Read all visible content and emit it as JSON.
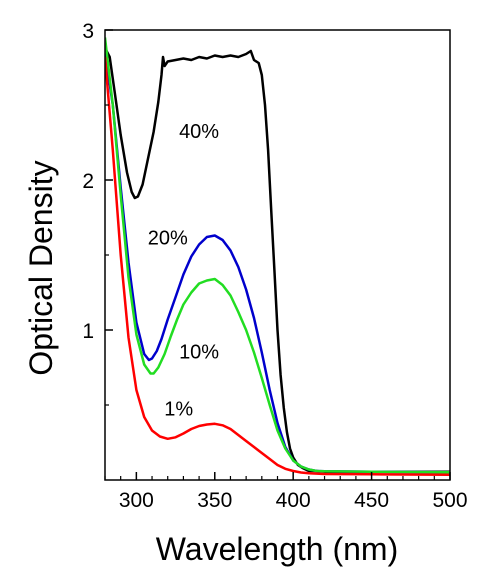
{
  "chart_data": {
    "type": "line",
    "xlabel": "Wavelength (nm)",
    "ylabel": "Optical Density",
    "xlim": [
      280,
      500
    ],
    "ylim": [
      0,
      3
    ],
    "grid": false,
    "x_ticks": [
      300,
      350,
      400,
      450,
      500
    ],
    "y_ticks": [
      1,
      2,
      3
    ],
    "series": [
      {
        "name": "40%",
        "color": "#000000",
        "x": [
          280,
          283,
          286,
          290,
          294,
          297,
          299,
          301,
          304,
          307,
          311,
          314,
          316,
          317,
          318,
          320,
          325,
          330,
          335,
          340,
          345,
          350,
          355,
          360,
          365,
          370,
          373,
          375,
          378,
          380,
          382,
          384,
          386,
          388,
          390,
          392,
          394,
          396,
          398,
          400,
          403,
          406,
          410,
          415,
          420,
          450,
          500
        ],
        "y": [
          2.88,
          2.82,
          2.6,
          2.3,
          2.05,
          1.92,
          1.88,
          1.89,
          1.97,
          2.12,
          2.32,
          2.52,
          2.7,
          2.82,
          2.76,
          2.79,
          2.8,
          2.81,
          2.8,
          2.82,
          2.81,
          2.83,
          2.82,
          2.83,
          2.82,
          2.84,
          2.86,
          2.8,
          2.78,
          2.7,
          2.5,
          2.2,
          1.8,
          1.4,
          1.0,
          0.7,
          0.48,
          0.32,
          0.21,
          0.15,
          0.1,
          0.08,
          0.06,
          0.06,
          0.055,
          0.055,
          0.055
        ]
      },
      {
        "name": "20%",
        "color": "#0000cc",
        "x": [
          280,
          285,
          290,
          295,
          300,
          305,
          308,
          310,
          313,
          316,
          320,
          325,
          330,
          335,
          340,
          345,
          350,
          355,
          360,
          365,
          370,
          375,
          380,
          385,
          390,
          395,
          400,
          405,
          410,
          415,
          420,
          450,
          500
        ],
        "y": [
          2.85,
          2.5,
          1.95,
          1.45,
          1.05,
          0.84,
          0.8,
          0.81,
          0.86,
          0.94,
          1.07,
          1.22,
          1.37,
          1.49,
          1.57,
          1.62,
          1.63,
          1.6,
          1.53,
          1.42,
          1.27,
          1.08,
          0.85,
          0.6,
          0.38,
          0.22,
          0.13,
          0.09,
          0.07,
          0.06,
          0.058,
          0.055,
          0.052
        ]
      },
      {
        "name": "10%",
        "color": "#22dd22",
        "x": [
          280,
          285,
          290,
          295,
          300,
          305,
          309,
          311,
          314,
          318,
          322,
          326,
          330,
          335,
          340,
          345,
          350,
          355,
          360,
          365,
          370,
          375,
          380,
          385,
          390,
          395,
          400,
          405,
          410,
          415,
          420,
          450,
          500
        ],
        "y": [
          2.95,
          2.5,
          1.9,
          1.35,
          0.97,
          0.77,
          0.71,
          0.71,
          0.75,
          0.84,
          0.96,
          1.07,
          1.17,
          1.25,
          1.31,
          1.33,
          1.34,
          1.3,
          1.23,
          1.12,
          1.0,
          0.85,
          0.68,
          0.5,
          0.33,
          0.21,
          0.13,
          0.09,
          0.07,
          0.06,
          0.058,
          0.055,
          0.052
        ]
      },
      {
        "name": "1%",
        "color": "#ff0000",
        "x": [
          280,
          285,
          290,
          295,
          300,
          305,
          310,
          315,
          320,
          325,
          330,
          335,
          340,
          345,
          350,
          355,
          360,
          365,
          370,
          375,
          380,
          385,
          390,
          395,
          400,
          405,
          410,
          420,
          450,
          500
        ],
        "y": [
          2.82,
          2.2,
          1.5,
          0.95,
          0.6,
          0.42,
          0.33,
          0.29,
          0.275,
          0.285,
          0.31,
          0.34,
          0.36,
          0.37,
          0.375,
          0.365,
          0.34,
          0.3,
          0.26,
          0.22,
          0.18,
          0.14,
          0.1,
          0.075,
          0.06,
          0.05,
          0.045,
          0.04,
          0.038,
          0.035
        ]
      }
    ]
  }
}
